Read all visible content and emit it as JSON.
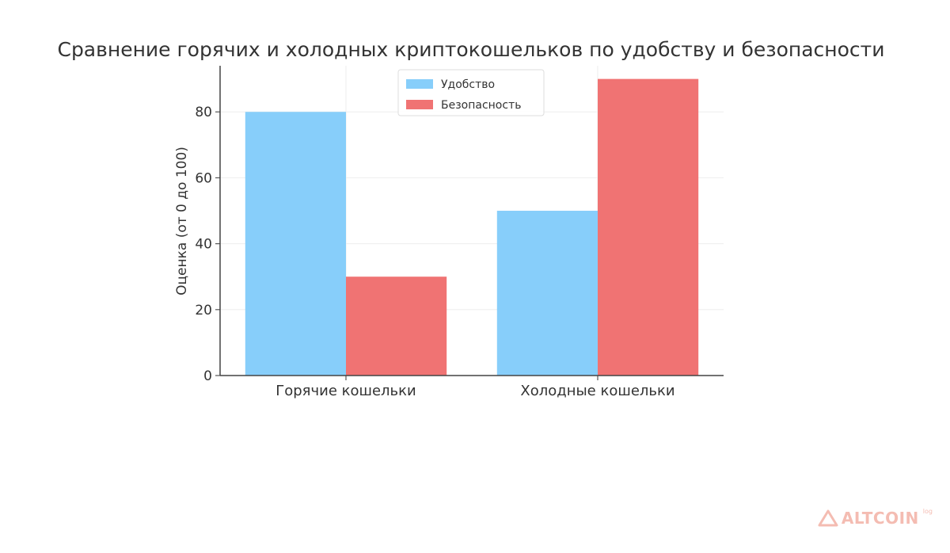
{
  "chart_data": {
    "type": "bar",
    "title": "Сравнение горячих и холодных криптокошельков по удобству и безопасности",
    "xlabel": "",
    "ylabel": "Оценка (от 0 до 100)",
    "categories": [
      "Горячие кошельки",
      "Холодные кошельки"
    ],
    "series": [
      {
        "name": "Удобство",
        "values": [
          80,
          50
        ],
        "color": "#87cefa"
      },
      {
        "name": "Безопасность",
        "values": [
          30,
          90
        ],
        "color": "#f07373"
      }
    ],
    "ylim": [
      0,
      94
    ],
    "yticks": [
      0,
      20,
      40,
      60,
      80
    ],
    "grid": true,
    "legend": "top-center"
  },
  "watermark": {
    "text": "ALTCOIN",
    "sup": "log",
    "color": "#f4bcb2",
    "icon": "triangle-logo-icon"
  }
}
